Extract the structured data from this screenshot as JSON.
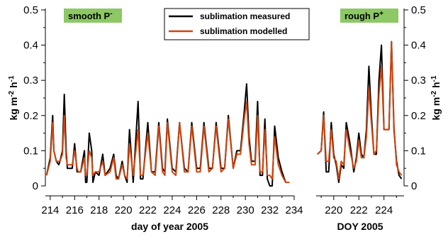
{
  "chart_data": {
    "type": "line",
    "ylabel_main": "kg m",
    "ylabel_sup1": "-2",
    "ylabel_mid": " h",
    "ylabel_sup2": "-1",
    "ylim": [
      0,
      0.5
    ],
    "y_ticks": [
      "0",
      "0.1",
      "0.2",
      "0.3",
      "0.4",
      "0.5"
    ],
    "colors": {
      "measured": "#000000",
      "modelled": "#d0440e",
      "label_bg": "#8cc864"
    },
    "legend": {
      "position": "top-center",
      "measured_label": "sublimation measured",
      "modelled_label": "sublimation modelled"
    },
    "panels": [
      {
        "label_main": "smooth P",
        "label_sup": "-",
        "xlabel": "day of year 2005",
        "xlim": [
          213.6,
          234.0
        ],
        "x_ticks": [
          "214",
          "216",
          "218",
          "220",
          "222",
          "224",
          "226",
          "228",
          "230",
          "232",
          "234"
        ],
        "series": [
          {
            "name": "sublimation measured",
            "x": [
              213.7,
              214.0,
              214.2,
              214.3,
              214.5,
              214.7,
              214.8,
              215.0,
              215.15,
              215.3,
              215.4,
              215.5,
              215.8,
              216.0,
              216.2,
              216.3,
              216.5,
              216.8,
              216.9,
              217.0,
              217.2,
              217.4,
              217.5,
              217.7,
              218.0,
              218.3,
              218.5,
              218.9,
              219.2,
              219.4,
              219.6,
              219.9,
              220.1,
              220.3,
              220.5,
              220.8,
              221.2,
              221.4,
              221.6,
              222.0,
              222.3,
              222.6,
              222.9,
              223.2,
              223.4,
              223.6,
              224.0,
              224.3,
              224.6,
              225.0,
              225.3,
              225.6,
              226.0,
              226.3,
              226.6,
              227.0,
              227.3,
              227.6,
              228.0,
              228.3,
              228.6,
              229.0,
              229.3,
              229.6,
              229.9,
              230.1,
              230.3,
              230.5,
              230.8,
              231.0,
              231.2,
              231.4,
              231.6,
              231.8,
              232.0,
              232.2,
              232.4,
              232.7,
              233.0,
              233.3,
              233.6
            ],
            "y": [
              0.03,
              0.08,
              0.2,
              0.1,
              0.07,
              0.06,
              0.07,
              0.1,
              0.26,
              0.1,
              0.05,
              0.05,
              0.05,
              0.12,
              0.04,
              0.04,
              0.04,
              0.1,
              0.01,
              0.01,
              0.15,
              0.1,
              0.01,
              0.04,
              0.03,
              0.09,
              0.03,
              0.05,
              0.09,
              0.03,
              0.02,
              0.07,
              0.03,
              0.01,
              0.16,
              0.01,
              0.24,
              0.02,
              0.02,
              0.18,
              0.04,
              0.04,
              0.18,
              0.05,
              0.04,
              0.19,
              0.05,
              0.04,
              0.18,
              0.05,
              0.04,
              0.18,
              0.05,
              0.05,
              0.18,
              0.05,
              0.05,
              0.18,
              0.05,
              0.05,
              0.2,
              0.05,
              0.1,
              0.1,
              0.21,
              0.29,
              0.14,
              0.07,
              0.07,
              0.24,
              0.03,
              0.03,
              0.19,
              0.02,
              0.0,
              0.0,
              0.17,
              0.08,
              0.04,
              0.01,
              0.01
            ]
          },
          {
            "name": "sublimation modelled",
            "x": [
              213.7,
              214.0,
              214.2,
              214.3,
              214.5,
              214.7,
              214.8,
              215.0,
              215.15,
              215.3,
              215.4,
              215.5,
              215.8,
              216.0,
              216.2,
              216.3,
              216.5,
              216.8,
              216.9,
              217.0,
              217.2,
              217.4,
              217.5,
              217.7,
              218.0,
              218.3,
              218.5,
              218.9,
              219.2,
              219.4,
              219.6,
              219.9,
              220.1,
              220.3,
              220.5,
              220.8,
              221.2,
              221.4,
              221.6,
              222.0,
              222.3,
              222.6,
              222.9,
              223.2,
              223.4,
              223.6,
              224.0,
              224.3,
              224.6,
              225.0,
              225.3,
              225.6,
              226.0,
              226.3,
              226.6,
              227.0,
              227.3,
              227.6,
              228.0,
              228.3,
              228.6,
              229.0,
              229.3,
              229.6,
              229.9,
              230.1,
              230.3,
              230.5,
              230.8,
              231.0,
              231.2,
              231.4,
              231.6,
              231.8,
              232.0,
              232.2,
              232.4,
              232.7,
              233.0,
              233.3,
              233.6
            ],
            "y": [
              0.03,
              0.07,
              0.18,
              0.1,
              0.07,
              0.07,
              0.07,
              0.09,
              0.2,
              0.08,
              0.06,
              0.06,
              0.06,
              0.1,
              0.05,
              0.04,
              0.04,
              0.08,
              0.03,
              0.03,
              0.1,
              0.08,
              0.03,
              0.04,
              0.04,
              0.07,
              0.03,
              0.04,
              0.08,
              0.02,
              0.02,
              0.06,
              0.03,
              0.02,
              0.12,
              0.03,
              0.16,
              0.03,
              0.03,
              0.15,
              0.04,
              0.03,
              0.17,
              0.04,
              0.03,
              0.18,
              0.04,
              0.03,
              0.18,
              0.04,
              0.04,
              0.17,
              0.04,
              0.04,
              0.17,
              0.04,
              0.05,
              0.17,
              0.04,
              0.05,
              0.19,
              0.05,
              0.09,
              0.09,
              0.19,
              0.24,
              0.12,
              0.06,
              0.06,
              0.2,
              0.04,
              0.04,
              0.16,
              0.03,
              0.03,
              0.02,
              0.14,
              0.06,
              0.03,
              0.01,
              0.01
            ]
          }
        ]
      },
      {
        "label_main": "rough  P",
        "label_sup": "+",
        "xlabel": "DOY 2005",
        "xlim": [
          218.6,
          225.6
        ],
        "x_ticks": [
          "220",
          "222",
          "224"
        ],
        "series": [
          {
            "name": "sublimation measured",
            "x": [
              218.7,
              219.0,
              219.2,
              219.4,
              219.6,
              219.8,
              220.0,
              220.2,
              220.4,
              220.6,
              220.8,
              221.0,
              221.3,
              221.6,
              221.8,
              222.0,
              222.2,
              222.4,
              222.6,
              222.8,
              223.0,
              223.2,
              223.4,
              223.6,
              223.8,
              224.0,
              224.2,
              224.4,
              224.6,
              224.8,
              225.0,
              225.2,
              225.4
            ],
            "y": [
              0.09,
              0.1,
              0.21,
              0.04,
              0.04,
              0.18,
              0.09,
              0.06,
              0.01,
              0.06,
              0.05,
              0.18,
              0.12,
              0.04,
              0.08,
              0.15,
              0.09,
              0.08,
              0.16,
              0.34,
              0.2,
              0.09,
              0.09,
              0.3,
              0.4,
              0.16,
              0.16,
              0.16,
              0.41,
              0.16,
              0.07,
              0.03,
              0.02
            ]
          },
          {
            "name": "sublimation modelled",
            "x": [
              218.7,
              219.0,
              219.2,
              219.4,
              219.6,
              219.8,
              220.0,
              220.2,
              220.4,
              220.6,
              220.8,
              221.0,
              221.3,
              221.6,
              221.8,
              222.0,
              222.2,
              222.4,
              222.6,
              222.8,
              223.0,
              223.2,
              223.4,
              223.6,
              223.8,
              224.0,
              224.2,
              224.4,
              224.6,
              224.8,
              225.0,
              225.2,
              225.4
            ],
            "y": [
              0.09,
              0.1,
              0.2,
              0.07,
              0.07,
              0.16,
              0.08,
              0.07,
              0.02,
              0.07,
              0.06,
              0.16,
              0.1,
              0.05,
              0.07,
              0.13,
              0.08,
              0.08,
              0.14,
              0.28,
              0.18,
              0.09,
              0.1,
              0.26,
              0.34,
              0.16,
              0.16,
              0.16,
              0.41,
              0.17,
              0.06,
              0.04,
              0.03
            ]
          }
        ]
      }
    ]
  }
}
